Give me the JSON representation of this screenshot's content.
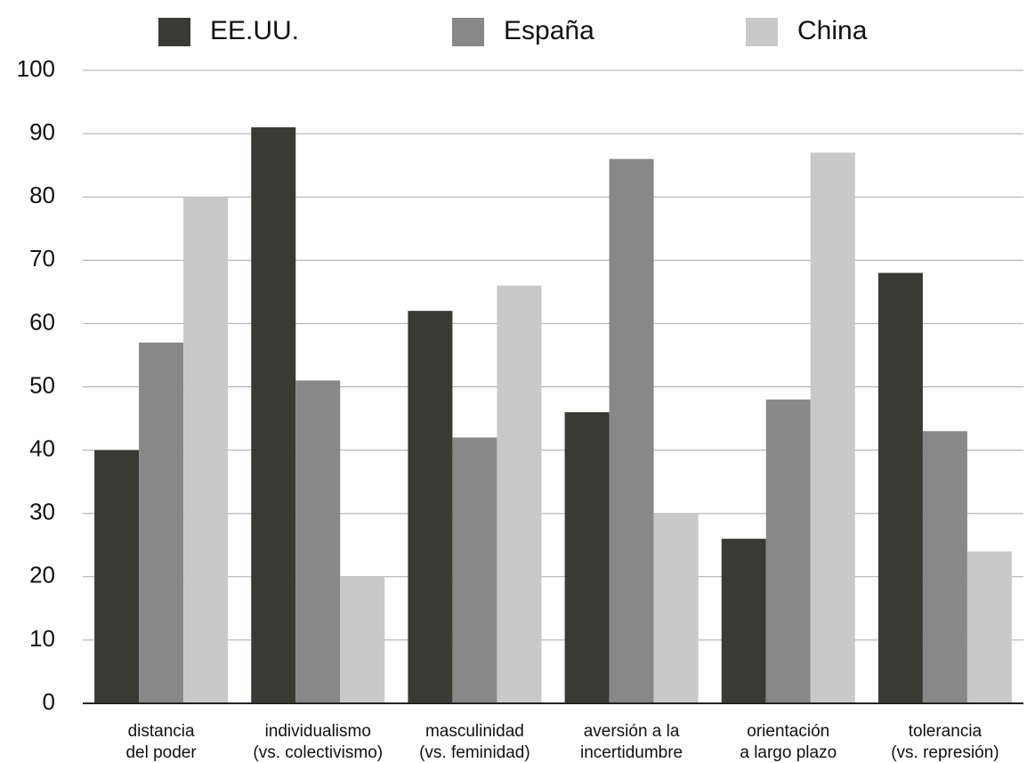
{
  "chart_data": {
    "type": "bar",
    "categories": [
      [
        "distancia",
        "del poder"
      ],
      [
        "individualismo",
        "(vs. colectivismo)"
      ],
      [
        "masculinidad",
        "(vs. feminidad)"
      ],
      [
        "aversión a la",
        "incertidumbre"
      ],
      [
        "orientación",
        "a largo plazo"
      ],
      [
        "tolerancia",
        "(vs. represión)"
      ]
    ],
    "series": [
      {
        "name": "EE.UU.",
        "color": "#3a3a34",
        "values": [
          40,
          91,
          62,
          46,
          26,
          68
        ]
      },
      {
        "name": "España",
        "color": "#888888",
        "values": [
          57,
          51,
          42,
          86,
          48,
          43
        ]
      },
      {
        "name": "China",
        "color": "#c9c9c9",
        "values": [
          80,
          20,
          66,
          30,
          87,
          24
        ]
      }
    ],
    "ylim": [
      0,
      100
    ],
    "yticks": [
      0,
      10,
      20,
      30,
      40,
      50,
      60,
      70,
      80,
      90,
      100
    ],
    "grid": true,
    "legend": "top"
  }
}
